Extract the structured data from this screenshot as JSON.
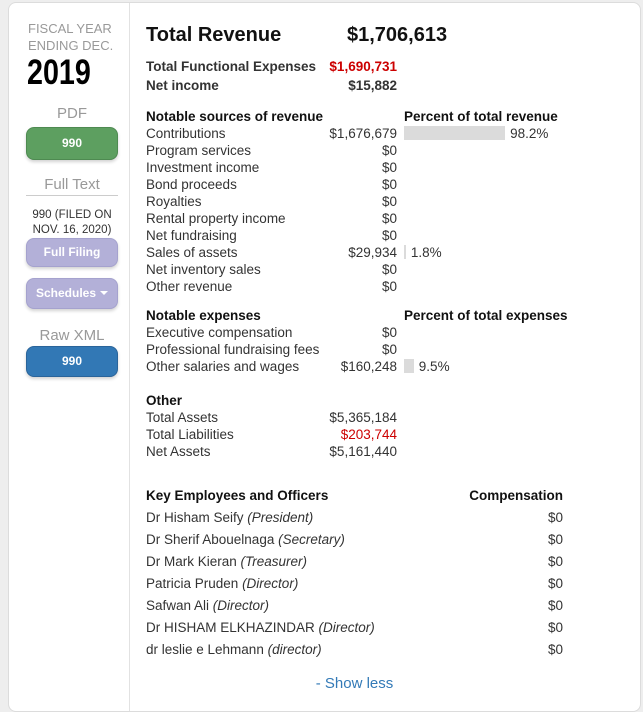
{
  "sidebar": {
    "fiscal_year_label_line1": "FISCAL YEAR",
    "fiscal_year_label_line2": "ENDING DEC.",
    "year": "2019",
    "pdf_label": "PDF",
    "pdf_button_label": "990",
    "full_text_label": "Full Text",
    "filing_note_line1": "990 (FILED ON",
    "filing_note_line2": "NOV. 16, 2020)",
    "full_filing_button_label": "Full Filing",
    "schedules_button_label": "Schedules",
    "raw_xml_label": "Raw XML",
    "xml_button_label": "990"
  },
  "summary": {
    "total_revenue_label": "Total Revenue",
    "total_revenue_value": "$1,706,613",
    "total_functional_expenses_label": "Total Functional Expenses",
    "total_functional_expenses_value": "$1,690,731",
    "net_income_label": "Net income",
    "net_income_value": "$15,882"
  },
  "revenue_section": {
    "title": "Notable sources of revenue",
    "percent_header": "Percent of total revenue",
    "rows": [
      {
        "label": "Contributions",
        "value": "$1,676,679",
        "percent": 98.2,
        "percent_label": "98.2%"
      },
      {
        "label": "Program services",
        "value": "$0"
      },
      {
        "label": "Investment income",
        "value": "$0"
      },
      {
        "label": "Bond proceeds",
        "value": "$0"
      },
      {
        "label": "Royalties",
        "value": "$0"
      },
      {
        "label": "Rental property income",
        "value": "$0"
      },
      {
        "label": "Net fundraising",
        "value": "$0"
      },
      {
        "label": "Sales of assets",
        "value": "$29,934",
        "percent": 1.8,
        "percent_label": "1.8%"
      },
      {
        "label": "Net inventory sales",
        "value": "$0"
      },
      {
        "label": "Other revenue",
        "value": "$0"
      }
    ]
  },
  "expenses_section": {
    "title": "Notable expenses",
    "percent_header": "Percent of total expenses",
    "rows": [
      {
        "label": "Executive compensation",
        "value": "$0"
      },
      {
        "label": "Professional fundraising fees",
        "value": "$0"
      },
      {
        "label": "Other salaries and wages",
        "value": "$160,248",
        "percent": 9.5,
        "percent_label": "9.5%"
      }
    ]
  },
  "other_section": {
    "title": "Other",
    "rows": [
      {
        "label": "Total Assets",
        "value": "$5,365,184"
      },
      {
        "label": "Total Liabilities",
        "value": "$203,744",
        "negative": true
      },
      {
        "label": "Net Assets",
        "value": "$5,161,440"
      }
    ]
  },
  "employees_section": {
    "title": "Key Employees and Officers",
    "compensation_header": "Compensation",
    "rows": [
      {
        "name": "Dr Hisham Seify",
        "role": "(President)",
        "value": "$0"
      },
      {
        "name": "Dr Sherif Abouelnaga",
        "role": "(Secretary)",
        "value": "$0"
      },
      {
        "name": "Dr Mark Kieran",
        "role": "(Treasurer)",
        "value": "$0"
      },
      {
        "name": "Patricia Pruden",
        "role": "(Director)",
        "value": "$0"
      },
      {
        "name": "Safwan Ali",
        "role": "(Director)",
        "value": "$0"
      },
      {
        "name": "Dr HISHAM ELKHAZINDAR",
        "role": "(Director)",
        "value": "$0"
      },
      {
        "name": "dr leslie e Lehmann",
        "role": "(director)",
        "value": "$0"
      }
    ]
  },
  "footer": {
    "show_less_label": "- Show less"
  },
  "colors": {
    "pdf_button": "#5d9f60",
    "text_buttons": "#b3b0d8",
    "xml_button": "#3278b5",
    "negative_value": "#cc0000",
    "link": "#337ab7",
    "percent_bar": "#dbdbdb",
    "muted_label": "#999999"
  },
  "chart_data": {
    "type": "bar",
    "title": "Percent of total revenue / expenses",
    "series": [
      {
        "name": "Percent of total revenue",
        "categories": [
          "Contributions",
          "Sales of assets"
        ],
        "values": [
          98.2,
          1.8
        ]
      },
      {
        "name": "Percent of total expenses",
        "categories": [
          "Other salaries and wages"
        ],
        "values": [
          9.5
        ]
      }
    ],
    "xlim": [
      0,
      100
    ]
  }
}
